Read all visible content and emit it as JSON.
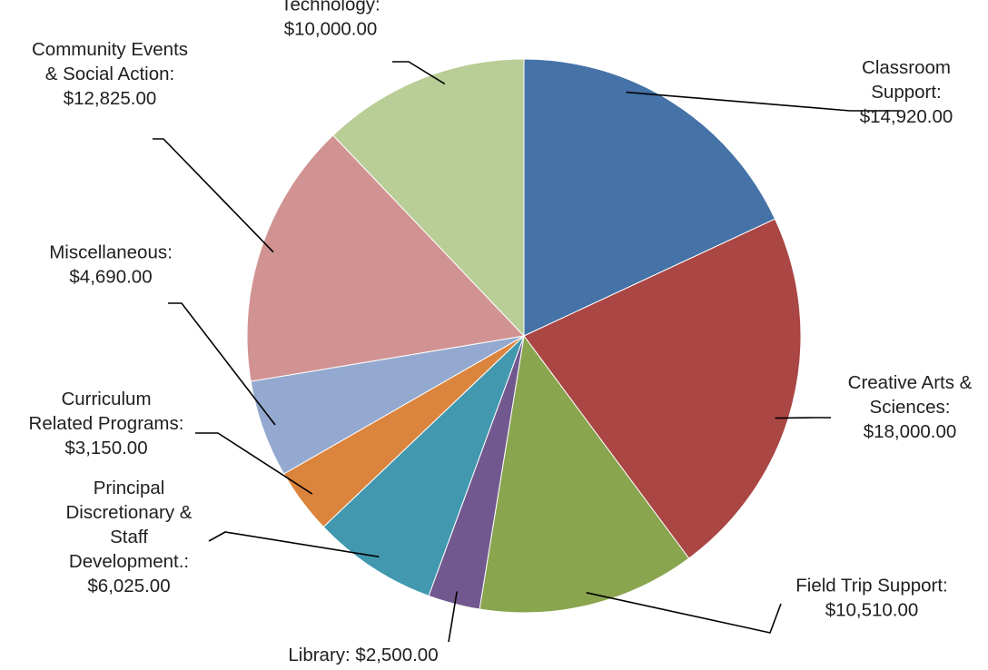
{
  "chart_data": {
    "type": "pie",
    "currency": "$",
    "slices": [
      {
        "lines": [
          "Classroom",
          "Support:"
        ],
        "label": "Classroom Support",
        "value": 14920.0,
        "value_text": "$14,920.00",
        "color": "#4572A7"
      },
      {
        "lines": [
          "Creative Arts &",
          "Sciences:"
        ],
        "label": "Creative Arts & Sciences",
        "value": 18000.0,
        "value_text": "$18,000.00",
        "color": "#AA4643"
      },
      {
        "lines": [
          "Field Trip Support:"
        ],
        "label": "Field Trip Support",
        "value": 10510.0,
        "value_text": "$10,510.00",
        "color": "#89A54E"
      },
      {
        "lines": [
          "Library:  $2,500.00"
        ],
        "label": "Library",
        "value": 2500.0,
        "value_text": "",
        "color": "#71588F"
      },
      {
        "lines": [
          "Principal",
          "Discretionary &",
          "Staff",
          "Development.:"
        ],
        "label": "Principal Discretionary & Staff Development.",
        "value": 6025.0,
        "value_text": "$6,025.00",
        "color": "#4198AF"
      },
      {
        "lines": [
          "Curriculum",
          "Related Programs:"
        ],
        "label": "Curriculum Related Programs",
        "value": 3150.0,
        "value_text": "$3,150.00",
        "color": "#DB843D"
      },
      {
        "lines": [
          "Miscellaneous:"
        ],
        "label": "Miscellaneous",
        "value": 4690.0,
        "value_text": "$4,690.00",
        "color": "#93A9CF"
      },
      {
        "lines": [
          "Community Events",
          "& Social Action:"
        ],
        "label": "Community Events & Social Action",
        "value": 12825.0,
        "value_text": "$12,825.00",
        "color": "#D19392"
      },
      {
        "lines": [
          "Technology:"
        ],
        "label": "Technology",
        "value": 10000.0,
        "value_text": "$10,000.00",
        "color": "#B9CD96"
      }
    ]
  }
}
